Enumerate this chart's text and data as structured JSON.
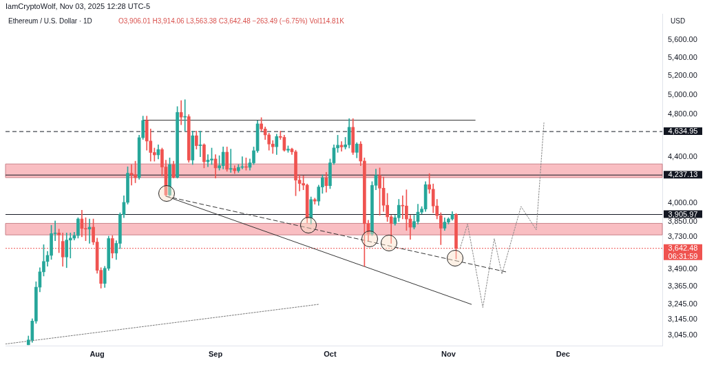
{
  "chart_data": {
    "type": "candlestick",
    "title": "Ethereum / U.S. Dollar · 1D",
    "subtitle": "O3,906.01 H3,914.06 L3,563.38 C3,642.48 −263.49 (−6.75%) Vol114.81K",
    "ylabel": "USD",
    "annotations": [
      "IamCryptoWolf, Nov 03, 2025 12:28 UTC-5"
    ],
    "x": [
      "2025-07-14",
      "2025-07-15",
      "2025-07-16",
      "2025-07-17",
      "2025-07-18",
      "2025-07-19",
      "2025-07-20",
      "2025-07-21",
      "2025-07-22",
      "2025-07-23",
      "2025-07-24",
      "2025-07-25",
      "2025-07-26",
      "2025-07-27",
      "2025-07-28",
      "2025-07-29",
      "2025-07-30",
      "2025-07-31",
      "2025-08-01",
      "2025-08-02",
      "2025-08-03",
      "2025-08-04",
      "2025-08-05",
      "2025-08-06",
      "2025-08-07",
      "2025-08-08",
      "2025-08-09",
      "2025-08-10",
      "2025-08-11",
      "2025-08-12",
      "2025-08-13",
      "2025-08-14",
      "2025-08-15",
      "2025-08-16",
      "2025-08-17",
      "2025-08-18",
      "2025-08-19",
      "2025-08-20",
      "2025-08-21",
      "2025-08-22",
      "2025-08-23",
      "2025-08-24",
      "2025-08-25",
      "2025-08-26",
      "2025-08-27",
      "2025-08-28",
      "2025-08-29",
      "2025-08-30",
      "2025-08-31",
      "2025-09-01",
      "2025-09-02",
      "2025-09-03",
      "2025-09-04",
      "2025-09-05",
      "2025-09-06",
      "2025-09-07",
      "2025-09-08",
      "2025-09-09",
      "2025-09-10",
      "2025-09-11",
      "2025-09-12",
      "2025-09-13",
      "2025-09-14",
      "2025-09-15",
      "2025-09-16",
      "2025-09-17",
      "2025-09-18",
      "2025-09-19",
      "2025-09-20",
      "2025-09-21",
      "2025-09-22",
      "2025-09-23",
      "2025-09-24",
      "2025-09-25",
      "2025-09-26",
      "2025-09-27",
      "2025-09-28",
      "2025-09-29",
      "2025-09-30",
      "2025-10-01",
      "2025-10-02",
      "2025-10-03",
      "2025-10-04",
      "2025-10-05",
      "2025-10-06",
      "2025-10-07",
      "2025-10-08",
      "2025-10-09",
      "2025-10-10",
      "2025-10-11",
      "2025-10-12",
      "2025-10-13",
      "2025-10-14",
      "2025-10-15",
      "2025-10-16",
      "2025-10-17",
      "2025-10-18",
      "2025-10-19",
      "2025-10-20",
      "2025-10-21",
      "2025-10-22",
      "2025-10-23",
      "2025-10-24",
      "2025-10-25",
      "2025-10-26",
      "2025-10-27",
      "2025-10-28",
      "2025-10-29",
      "2025-10-30",
      "2025-10-31",
      "2025-11-01",
      "2025-11-02",
      "2025-11-03"
    ],
    "ohlc": [
      [
        2985,
        3040,
        2985,
        3015
      ],
      [
        3015,
        3150,
        3000,
        3135
      ],
      [
        3135,
        3400,
        3120,
        3362
      ],
      [
        3362,
        3500,
        3330,
        3470
      ],
      [
        3470,
        3670,
        3440,
        3545
      ],
      [
        3545,
        3620,
        3510,
        3590
      ],
      [
        3590,
        3820,
        3560,
        3755
      ],
      [
        3755,
        3855,
        3700,
        3760
      ],
      [
        3760,
        3790,
        3610,
        3745
      ],
      [
        3695,
        3760,
        3510,
        3578
      ],
      [
        3578,
        3760,
        3500,
        3705
      ],
      [
        3705,
        3760,
        3570,
        3720
      ],
      [
        3720,
        3765,
        3705,
        3740
      ],
      [
        3740,
        3880,
        3720,
        3870
      ],
      [
        3870,
        3940,
        3730,
        3795
      ],
      [
        3795,
        3880,
        3700,
        3790
      ],
      [
        3790,
        3870,
        3680,
        3805
      ],
      [
        3805,
        3870,
        3670,
        3690
      ],
      [
        3690,
        3720,
        3460,
        3481
      ],
      [
        3481,
        3500,
        3355,
        3388
      ],
      [
        3388,
        3510,
        3360,
        3495
      ],
      [
        3495,
        3735,
        3480,
        3717
      ],
      [
        3717,
        3740,
        3570,
        3607
      ],
      [
        3607,
        3700,
        3560,
        3680
      ],
      [
        3680,
        3920,
        3640,
        3906
      ],
      [
        3906,
        4060,
        3880,
        4005
      ],
      [
        4005,
        4310,
        3990,
        4253
      ],
      [
        4253,
        4330,
        4150,
        4240
      ],
      [
        4240,
        4360,
        4170,
        4215
      ],
      [
        4215,
        4600,
        4200,
        4577
      ],
      [
        4577,
        4785,
        4560,
        4742
      ],
      [
        4742,
        4785,
        4460,
        4545
      ],
      [
        4545,
        4660,
        4360,
        4439
      ],
      [
        4439,
        4480,
        4360,
        4417
      ],
      [
        4417,
        4510,
        4380,
        4466
      ],
      [
        4466,
        4480,
        4230,
        4308
      ],
      [
        4308,
        4370,
        4060,
        4066
      ],
      [
        4066,
        4390,
        4060,
        4329
      ],
      [
        4329,
        4360,
        4210,
        4217
      ],
      [
        4217,
        4880,
        4210,
        4822
      ],
      [
        4822,
        4940,
        4700,
        4775
      ],
      [
        4775,
        4950,
        4640,
        4780
      ],
      [
        4780,
        4800,
        4350,
        4370
      ],
      [
        4370,
        4640,
        4330,
        4595
      ],
      [
        4595,
        4640,
        4470,
        4502
      ],
      [
        4502,
        4640,
        4400,
        4510
      ],
      [
        4510,
        4520,
        4300,
        4355
      ],
      [
        4355,
        4420,
        4310,
        4370
      ],
      [
        4370,
        4480,
        4330,
        4380
      ],
      [
        4380,
        4420,
        4210,
        4300
      ],
      [
        4300,
        4410,
        4280,
        4320
      ],
      [
        4320,
        4490,
        4290,
        4442
      ],
      [
        4442,
        4490,
        4270,
        4288
      ],
      [
        4288,
        4470,
        4260,
        4295
      ],
      [
        4295,
        4320,
        4250,
        4275
      ],
      [
        4275,
        4330,
        4260,
        4305
      ],
      [
        4305,
        4400,
        4290,
        4310
      ],
      [
        4310,
        4390,
        4280,
        4305
      ],
      [
        4305,
        4380,
        4280,
        4345
      ],
      [
        4345,
        4490,
        4330,
        4455
      ],
      [
        4455,
        4740,
        4440,
        4709
      ],
      [
        4709,
        4770,
        4640,
        4660
      ],
      [
        4660,
        4680,
        4560,
        4603
      ],
      [
        4603,
        4620,
        4460,
        4517
      ],
      [
        4517,
        4550,
        4430,
        4492
      ],
      [
        4492,
        4610,
        4420,
        4588
      ],
      [
        4588,
        4640,
        4560,
        4580
      ],
      [
        4580,
        4600,
        4450,
        4460
      ],
      [
        4460,
        4500,
        4440,
        4470
      ],
      [
        4470,
        4480,
        4420,
        4445
      ],
      [
        4445,
        4460,
        4060,
        4193
      ],
      [
        4193,
        4240,
        4100,
        4164
      ],
      [
        4164,
        4230,
        4110,
        4150
      ],
      [
        4150,
        4160,
        3840,
        3875
      ],
      [
        3875,
        4050,
        3830,
        4028
      ],
      [
        4028,
        4040,
        3990,
        4015
      ],
      [
        4015,
        4150,
        3980,
        4134
      ],
      [
        4134,
        4240,
        4080,
        4213
      ],
      [
        4213,
        4260,
        4090,
        4145
      ],
      [
        4145,
        4380,
        4120,
        4345
      ],
      [
        4345,
        4510,
        4330,
        4481
      ],
      [
        4481,
        4600,
        4440,
        4506
      ],
      [
        4506,
        4540,
        4450,
        4490
      ],
      [
        4490,
        4580,
        4470,
        4510
      ],
      [
        4510,
        4760,
        4480,
        4676
      ],
      [
        4676,
        4760,
        4420,
        4440
      ],
      [
        4440,
        4530,
        4390,
        4517
      ],
      [
        4517,
        4540,
        4320,
        4361
      ],
      [
        4361,
        4390,
        3510,
        3833
      ],
      [
        3833,
        3860,
        3700,
        3752
      ],
      [
        3752,
        4180,
        3740,
        4148
      ],
      [
        4148,
        4290,
        4110,
        4234
      ],
      [
        4234,
        4300,
        3900,
        4124
      ],
      [
        4124,
        4220,
        3930,
        3981
      ],
      [
        3981,
        4080,
        3850,
        3887
      ],
      [
        3887,
        3900,
        3680,
        3833
      ],
      [
        3833,
        3900,
        3820,
        3880
      ],
      [
        3880,
        4030,
        3850,
        3981
      ],
      [
        3981,
        4060,
        3870,
        3975
      ],
      [
        3975,
        4110,
        3780,
        3870
      ],
      [
        3870,
        3900,
        3710,
        3805
      ],
      [
        3805,
        3900,
        3790,
        3850
      ],
      [
        3850,
        3990,
        3830,
        3925
      ],
      [
        3925,
        3970,
        3910,
        3950
      ],
      [
        3950,
        4180,
        3930,
        4154
      ],
      [
        4154,
        4250,
        4080,
        4115
      ],
      [
        4115,
        4160,
        3920,
        3975
      ],
      [
        3975,
        4030,
        3870,
        3897
      ],
      [
        3897,
        3920,
        3670,
        3797
      ],
      [
        3797,
        3880,
        3780,
        3845
      ],
      [
        3845,
        3880,
        3830,
        3870
      ],
      [
        3870,
        3930,
        3860,
        3906
      ],
      [
        3906.01,
        3914.06,
        3563.38,
        3642.48
      ]
    ],
    "colors": [
      "#26a69a",
      "#26a69a",
      "#26a69a",
      "#26a69a",
      "#26a69a",
      "#26a69a",
      "#26a69a",
      "#26a69a",
      "#ef5350",
      "#ef5350",
      "#26a69a",
      "#26a69a",
      "#26a69a",
      "#26a69a",
      "#ef5350",
      "#ef5350",
      "#26a69a",
      "#ef5350",
      "#ef5350",
      "#ef5350",
      "#26a69a",
      "#26a69a",
      "#ef5350",
      "#26a69a",
      "#26a69a",
      "#26a69a",
      "#26a69a",
      "#ef5350",
      "#ef5350",
      "#26a69a",
      "#26a69a",
      "#ef5350",
      "#ef5350",
      "#ef5350",
      "#26a69a",
      "#ef5350",
      "#ef5350",
      "#26a69a",
      "#ef5350",
      "#26a69a",
      "#ef5350",
      "#26a69a",
      "#ef5350",
      "#26a69a",
      "#ef5350",
      "#26a69a",
      "#ef5350",
      "#26a69a",
      "#26a69a",
      "#ef5350",
      "#26a69a",
      "#26a69a",
      "#ef5350",
      "#26a69a",
      "#ef5350",
      "#26a69a",
      "#26a69a",
      "#ef5350",
      "#26a69a",
      "#26a69a",
      "#26a69a",
      "#ef5350",
      "#ef5350",
      "#ef5350",
      "#ef5350",
      "#26a69a",
      "#ef5350",
      "#ef5350",
      "#26a69a",
      "#ef5350",
      "#ef5350",
      "#ef5350",
      "#ef5350",
      "#ef5350",
      "#26a69a",
      "#ef5350",
      "#26a69a",
      "#26a69a",
      "#ef5350",
      "#26a69a",
      "#26a69a",
      "#26a69a",
      "#ef5350",
      "#26a69a",
      "#26a69a",
      "#ef5350",
      "#26a69a",
      "#ef5350",
      "#ef5350",
      "#ef5350",
      "#26a69a",
      "#26a69a",
      "#ef5350",
      "#ef5350",
      "#ef5350",
      "#ef5350",
      "#26a69a",
      "#26a69a",
      "#ef5350",
      "#ef5350",
      "#ef5350",
      "#26a69a",
      "#26a69a",
      "#26a69a",
      "#26a69a",
      "#ef5350",
      "#ef5350",
      "#ef5350",
      "#ef5350",
      "#26a69a",
      "#26a69a",
      "#26a69a",
      "#ef5350"
    ],
    "series": [
      {
        "type": "line",
        "x": [
          "2025-08-13",
          "2025-11-08"
        ],
        "values": [
          4745,
          4745
        ],
        "color": "#333333",
        "line_style": "solid"
      },
      {
        "type": "line",
        "x": [
          "2025-08-19",
          "2025-11-16"
        ],
        "values": [
          4056,
          3470
        ],
        "color": "#333333",
        "line_style": "dashed"
      },
      {
        "type": "line",
        "x": [
          "2025-08-19",
          "2025-11-07"
        ],
        "values": [
          4056,
          3245
        ],
        "color": "#333333",
        "line_style": "solid"
      },
      {
        "type": "line",
        "x": [
          "2025-07-08",
          "2025-09-28"
        ],
        "values": [
          2990,
          3245
        ],
        "color": "#777777",
        "line_style": "dotted"
      },
      {
        "type": "line",
        "x": [
          "2025-11-04",
          "2025-11-06",
          "2025-11-10",
          "2025-11-13",
          "2025-11-15",
          "2025-11-20",
          "2025-11-24",
          "2025-11-26"
        ],
        "values": [
          3640,
          3830,
          3224,
          3716,
          3454,
          3971,
          3784,
          4720
        ],
        "color": "#888888",
        "line_style": "dotted"
      }
    ],
    "ref_lines": [
      {
        "axis": "y",
        "value": 4634.95,
        "label": "4,634.95",
        "color": "#131722",
        "line_style": "dashed"
      },
      {
        "axis": "y",
        "value": 4237.13,
        "label": "4,237.13",
        "color": "#131722",
        "line_style": "solid"
      },
      {
        "axis": "y",
        "value": 3905.97,
        "label": "3,905.97",
        "color": "#131722",
        "line_style": "solid"
      },
      {
        "axis": "y",
        "value": 3642.48,
        "label": "3,642.48\n06:31:59",
        "color": "#ef5350",
        "line_style": "dotted"
      }
    ],
    "bands": [
      {
        "axis": "y",
        "from": 4215,
        "to": 4335,
        "color": "#f7a8ad"
      },
      {
        "axis": "y",
        "from": 3745,
        "to": 3835,
        "color": "#f7a8ad"
      }
    ],
    "xlim": [
      "2025-07-08",
      "2025-12-27"
    ],
    "xticks": [
      {
        "value": "2025-08-01",
        "label": "Aug"
      },
      {
        "value": "2025-09-01",
        "label": "Sep"
      },
      {
        "value": "2025-10-01",
        "label": "Oct"
      },
      {
        "value": "2025-11-01",
        "label": "Nov"
      },
      {
        "value": "2025-12-01",
        "label": "Dec"
      }
    ],
    "ylim": [
      2980,
      5910
    ],
    "log": true,
    "yticks": [
      {
        "value": 3045,
        "label": "3,045.00"
      },
      {
        "value": 3145,
        "label": "3,145.00"
      },
      {
        "value": 3245,
        "label": "3,245.00"
      },
      {
        "value": 3365,
        "label": "3,365.00"
      },
      {
        "value": 3490,
        "label": "3,490.00"
      },
      {
        "value": 3730,
        "label": "3,730.00"
      },
      {
        "value": 3850,
        "label": "3,850.00"
      },
      {
        "value": 4000,
        "label": "4,000.00"
      },
      {
        "value": 4400,
        "label": "4,400.00"
      },
      {
        "value": 4800,
        "label": "4,800.00"
      },
      {
        "value": 5000,
        "label": "5,000.00"
      },
      {
        "value": 5200,
        "label": "5,200.00"
      },
      {
        "value": 5400,
        "label": "5,400.00"
      },
      {
        "value": 5600,
        "label": "5,600.00"
      }
    ],
    "grid": false,
    "legend": false,
    "marker": "none"
  }
}
